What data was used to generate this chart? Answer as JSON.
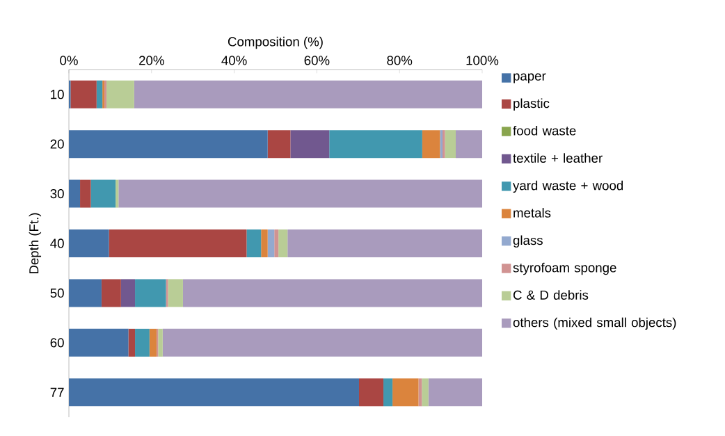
{
  "chart_data": {
    "type": "bar",
    "orientation": "horizontal",
    "stacked": true,
    "xlabel": "Composition (%)",
    "ylabel": "Depth (Ft.)",
    "categories": [
      "10",
      "20",
      "30",
      "40",
      "50",
      "60",
      "77"
    ],
    "xlim": [
      0,
      100
    ],
    "xticks": [
      {
        "value": 0,
        "label": "0%"
      },
      {
        "value": 20,
        "label": "20%"
      },
      {
        "value": 40,
        "label": "40%"
      },
      {
        "value": 60,
        "label": "60%"
      },
      {
        "value": 80,
        "label": "80%"
      },
      {
        "value": 100,
        "label": "100%"
      }
    ],
    "grid": false,
    "legend": "right",
    "series": [
      {
        "name": "paper",
        "color": "#4572a7",
        "values": [
          0.4,
          48.1,
          2.7,
          9.7,
          7.9,
          14.4,
          70.2
        ]
      },
      {
        "name": "plastic",
        "color": "#aa4643",
        "values": [
          6.3,
          5.5,
          2.6,
          33.3,
          4.7,
          1.6,
          5.9
        ]
      },
      {
        "name": "food waste",
        "color": "#89a54e",
        "values": [
          0,
          0,
          0,
          0,
          0,
          0,
          0
        ]
      },
      {
        "name": "textile + leather",
        "color": "#71588f",
        "values": [
          0,
          9.4,
          0,
          0,
          3.4,
          0,
          0
        ]
      },
      {
        "name": "yard waste + wood",
        "color": "#4198af",
        "values": [
          1.4,
          22.5,
          6.0,
          3.5,
          7.5,
          3.5,
          2.2
        ]
      },
      {
        "name": "metals",
        "color": "#db843d",
        "values": [
          0.5,
          4.3,
          0,
          1.6,
          0,
          1.7,
          6.3
        ]
      },
      {
        "name": "glass",
        "color": "#93a9cf",
        "values": [
          0,
          0.6,
          0,
          1.6,
          0,
          0,
          0
        ]
      },
      {
        "name": "styrofoam sponge",
        "color": "#d19392",
        "values": [
          0.5,
          0.6,
          0,
          1.0,
          0.5,
          0.4,
          0.8
        ]
      },
      {
        "name": "C & D debris",
        "color": "#b9cd96",
        "values": [
          6.7,
          2.6,
          0.7,
          2.2,
          3.6,
          1.1,
          1.6
        ]
      },
      {
        "name": "others  (mixed small objects)",
        "color": "#a99bbd",
        "values": [
          84.2,
          6.4,
          88.0,
          47.1,
          72.4,
          77.3,
          13.0
        ]
      }
    ]
  }
}
